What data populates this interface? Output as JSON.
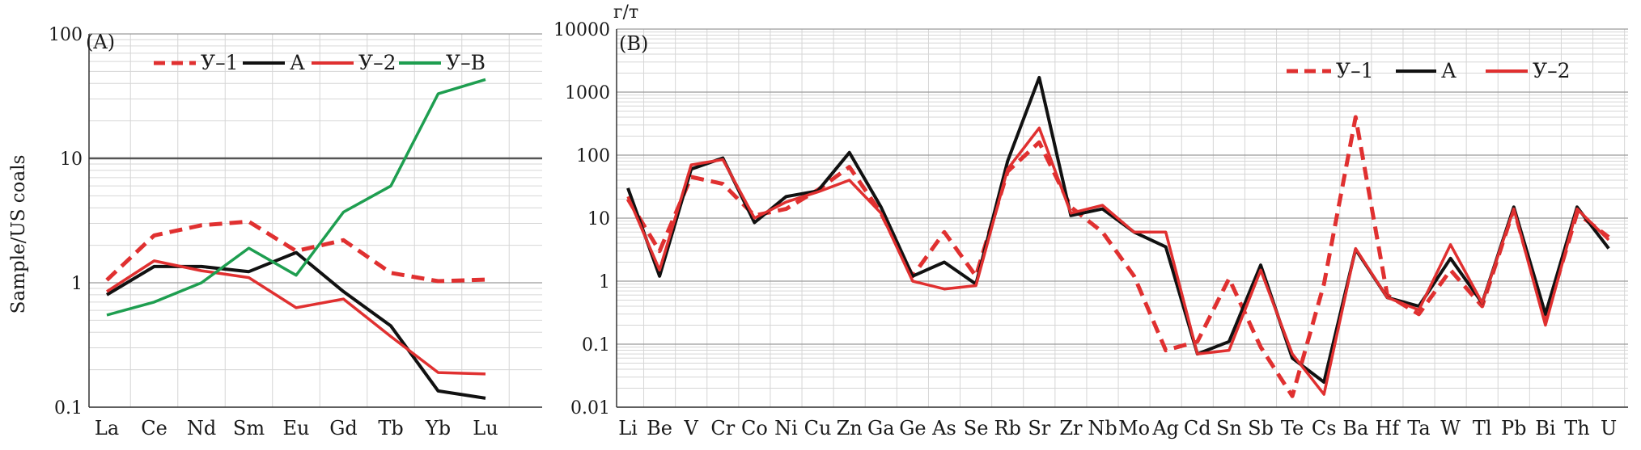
{
  "chart_data": [
    {
      "panel_label": "(A)",
      "type": "line",
      "ylabel": "Sample/US coals",
      "yscale": "log",
      "ylim": [
        0.1,
        100
      ],
      "y_ticks": [
        "0.1",
        "1",
        "10",
        "100"
      ],
      "grid": true,
      "legend_position": "top",
      "reference_line": 10,
      "categories": [
        "La",
        "Ce",
        "Nd",
        "Sm",
        "Eu",
        "Gd",
        "Tb",
        "Yb",
        "Lu"
      ],
      "series": [
        {
          "name": "У–1",
          "color": "#e03030",
          "dashed": true,
          "values": [
            1.05,
            2.4,
            2.9,
            3.1,
            1.8,
            2.2,
            1.2,
            1.03,
            1.06
          ]
        },
        {
          "name": "А",
          "color": "#111111",
          "dashed": false,
          "values": [
            0.8,
            1.35,
            1.35,
            1.23,
            1.75,
            0.85,
            0.45,
            0.135,
            0.118
          ]
        },
        {
          "name": "У–2",
          "color": "#e03030",
          "dashed": false,
          "values": [
            0.85,
            1.5,
            1.25,
            1.1,
            0.63,
            0.74,
            0.37,
            0.19,
            0.185
          ]
        },
        {
          "name": "У–В",
          "color": "#1e9e50",
          "dashed": false,
          "values": [
            0.55,
            0.7,
            1.0,
            1.9,
            1.15,
            3.7,
            6.0,
            33,
            43
          ]
        }
      ]
    },
    {
      "panel_label": "(B)",
      "type": "line",
      "ylabel": "г/т",
      "yscale": "log",
      "ylim": [
        0.01,
        10000
      ],
      "y_ticks": [
        "0.01",
        "0.1",
        "1",
        "10",
        "100",
        "1000",
        "10000"
      ],
      "grid": true,
      "legend_position": "top-right",
      "categories": [
        "Li",
        "Be",
        "V",
        "Cr",
        "Co",
        "Ni",
        "Cu",
        "Zn",
        "Ga",
        "Ge",
        "As",
        "Se",
        "Rb",
        "Sr",
        "Zr",
        "Nb",
        "Mo",
        "Ag",
        "Cd",
        "Sn",
        "Sb",
        "Te",
        "Cs",
        "Ba",
        "Hf",
        "Ta",
        "W",
        "Tl",
        "Pb",
        "Bi",
        "Th",
        "U"
      ],
      "series": [
        {
          "name": "У–1",
          "color": "#e03030",
          "dashed": true,
          "values": [
            20,
            3,
            45,
            35,
            11,
            14,
            28,
            65,
            12,
            1.2,
            6,
            1.2,
            55,
            160,
            15,
            6,
            1.2,
            0.08,
            0.11,
            1.1,
            0.09,
            0.015,
            0.9,
            400,
            0.6,
            0.3,
            1.5,
            0.4,
            14,
            0.25,
            12,
            5
          ]
        },
        {
          "name": "А",
          "color": "#111111",
          "dashed": false,
          "values": [
            30,
            1.2,
            60,
            90,
            8.5,
            22,
            27,
            110,
            15,
            1.2,
            2,
            0.9,
            80,
            1700,
            11,
            14,
            6,
            3.5,
            0.07,
            0.11,
            1.8,
            0.06,
            0.025,
            3.2,
            0.55,
            0.4,
            2.3,
            0.45,
            15,
            0.3,
            15,
            3.3
          ]
        },
        {
          "name": "У–2",
          "color": "#e03030",
          "dashed": false,
          "values": [
            22,
            1.5,
            70,
            85,
            10,
            18,
            26,
            40,
            12,
            1.0,
            0.75,
            0.85,
            60,
            270,
            12,
            16,
            6,
            6,
            0.07,
            0.08,
            1.5,
            0.07,
            0.016,
            3.3,
            0.55,
            0.35,
            3.8,
            0.45,
            14,
            0.2,
            14,
            4.5
          ]
        }
      ]
    }
  ]
}
